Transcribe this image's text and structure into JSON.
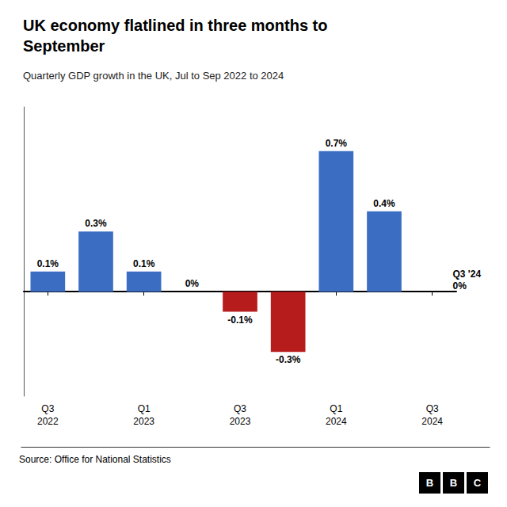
{
  "chart_data": {
    "type": "bar",
    "title": "UK economy flatlined in three months to\nSeptember",
    "subtitle": "Quarterly GDP growth in the UK, Jul to Sep 2022 to 2024",
    "source": "Source: Office for National Statistics",
    "logo": "BBC",
    "categories": [
      "Q3\n2022",
      null,
      "Q1\n2023",
      null,
      "Q3\n2023",
      null,
      "Q1\n2024",
      null,
      "Q3\n2024"
    ],
    "values": [
      0.1,
      0.3,
      0.1,
      0.0,
      -0.1,
      -0.3,
      0.7,
      0.4,
      0.0
    ],
    "value_labels": [
      "0.1%",
      "0.3%",
      "0.1%",
      "0%",
      "-0.1%",
      "-0.3%",
      "0.7%",
      "0.4%",
      null
    ],
    "colors": [
      "#3B6EC3",
      "#3B6EC3",
      "#3B6EC3",
      "#3B6EC3",
      "#B71C1C",
      "#B71C1C",
      "#3B6EC3",
      "#3B6EC3",
      "#3B6EC3"
    ],
    "annotation": "Q3 '24\n0%",
    "ylim": [
      -0.52,
      0.92
    ],
    "grid": false,
    "tick_labels": "x",
    "data_labels": true
  }
}
